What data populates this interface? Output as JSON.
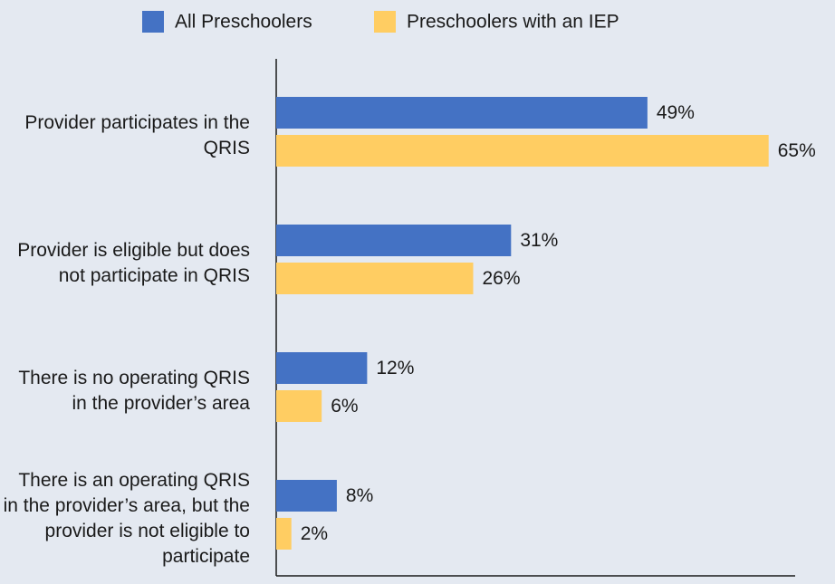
{
  "chart_data": {
    "type": "bar",
    "orientation": "horizontal",
    "categories": [
      "Provider participates in the QRIS",
      "Provider is eligible but does not participate in QRIS",
      "There is no operating QRIS in the provider’s area",
      "There is an operating QRIS in the provider’s area, but the provider is not eligible to participate"
    ],
    "series": [
      {
        "name": "All Preschoolers",
        "color": "#4472c4",
        "values": [
          49,
          31,
          12,
          8
        ],
        "value_labels": [
          "49%",
          "31%",
          "12%",
          "8%"
        ]
      },
      {
        "name": "Preschoolers with an IEP",
        "color": "#ffcd62",
        "values": [
          65,
          26,
          6,
          2
        ],
        "value_labels": [
          "65%",
          "26%",
          "6%",
          "2%"
        ]
      }
    ],
    "xlim": [
      0,
      68.5
    ],
    "legend": "top"
  }
}
